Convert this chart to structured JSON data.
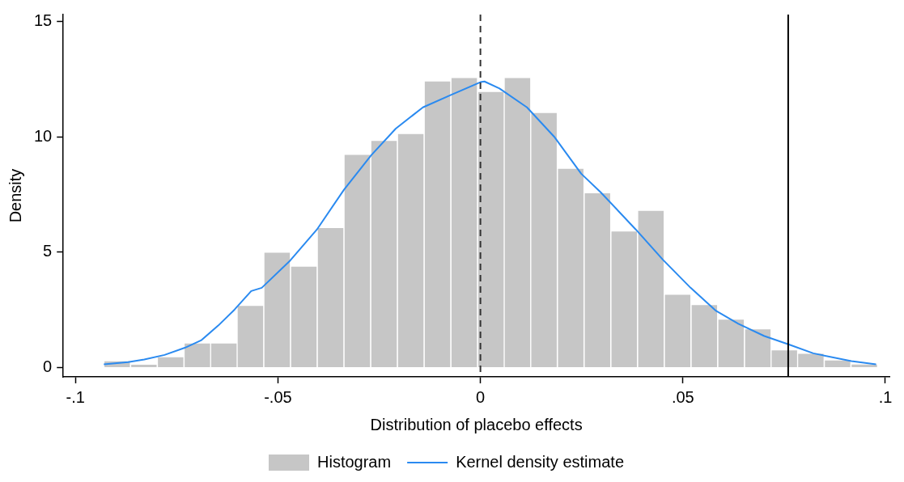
{
  "chart_data": {
    "type": "histogram",
    "xlabel": "Distribution of placebo effects",
    "ylabel": "Density",
    "bins": [
      -0.093,
      -0.0864,
      -0.0798,
      -0.0732,
      -0.0666,
      -0.0601,
      -0.0535,
      -0.0469,
      -0.0403,
      -0.0337,
      -0.0271,
      -0.0205,
      -0.0139,
      -0.0073,
      -0.0007,
      0.0059,
      0.0124,
      0.019,
      0.0256,
      0.0322,
      0.0388,
      0.0454,
      0.052,
      0.0586,
      0.0652,
      0.0718,
      0.0783,
      0.0849,
      0.0915,
      0.0981
    ],
    "series": [
      {
        "name": "Histogram",
        "color": "#c6c6c6",
        "values": [
          0.3,
          0.15,
          0.47,
          1.07,
          1.07,
          2.7,
          5.0,
          4.4,
          6.07,
          9.24,
          9.85,
          10.15,
          12.42,
          12.57,
          11.97,
          12.57,
          11.06,
          8.64,
          7.58,
          5.92,
          6.82,
          3.18,
          2.73,
          2.1,
          1.68,
          0.77,
          0.62,
          0.33,
          0.16
        ]
      },
      {
        "name": "Kernel density estimate",
        "type": "line",
        "color": "#2a8af0",
        "x": [
          -0.093,
          -0.087,
          -0.083,
          -0.078,
          -0.073,
          -0.069,
          -0.0647,
          -0.0607,
          -0.0566,
          -0.054,
          -0.0472,
          -0.0404,
          -0.0337,
          -0.027,
          -0.0209,
          -0.0142,
          -0.0075,
          0,
          0.001,
          0.0047,
          0.0115,
          0.0182,
          0.0249,
          0.0297,
          0.0384,
          0.0451,
          0.0519,
          0.0582,
          0.0637,
          0.0701,
          0.0762,
          0.0822,
          0.0916,
          0.0977
        ],
        "values": [
          0.14,
          0.24,
          0.35,
          0.55,
          0.86,
          1.18,
          1.83,
          2.52,
          3.32,
          3.46,
          4.6,
          5.98,
          7.71,
          9.2,
          10.36,
          11.28,
          11.8,
          12.37,
          12.4,
          12.1,
          11.28,
          10.01,
          8.4,
          7.6,
          5.98,
          4.67,
          3.46,
          2.46,
          1.9,
          1.37,
          1.0,
          0.62,
          0.28,
          0.14
        ]
      }
    ],
    "xlim": [
      -0.103,
      0.101
    ],
    "ylim": [
      -0.4,
      15.3
    ],
    "xticks": [
      {
        "value": -0.1,
        "label": "-.1"
      },
      {
        "value": -0.05,
        "label": "-.05"
      },
      0,
      {
        "value": 0.05,
        "label": ".05"
      },
      {
        "value": 0.1,
        "label": ".1"
      }
    ],
    "yticks": [
      0,
      5,
      10,
      15
    ],
    "ref_lines": [
      {
        "axis": "x",
        "value": 0,
        "color": "#333333",
        "line_style": "dashed"
      },
      {
        "axis": "x",
        "value": 0.076,
        "color": "#000000",
        "line_style": "solid"
      }
    ],
    "grid": false,
    "legend": "bottom"
  }
}
